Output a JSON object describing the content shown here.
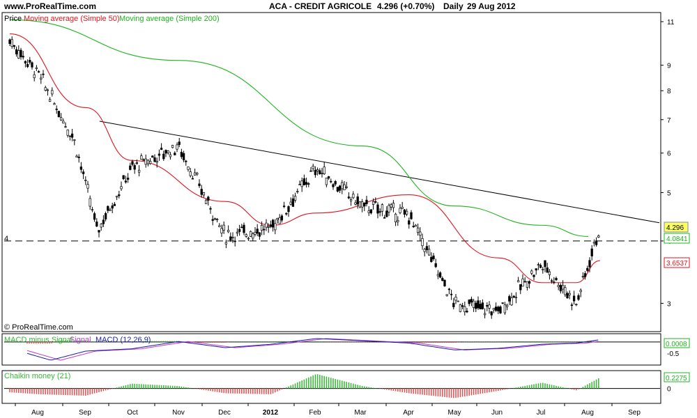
{
  "header": {
    "site": "www.ProRealTime.com",
    "title": "ACA - CREDIT AGRICOLE",
    "price_info": "4.296 (+0.70%)",
    "period": "Daily",
    "date": "29 Aug 2012"
  },
  "copyright": "© ProRealTime.com",
  "colors": {
    "ma50": "#e0161e",
    "ma200": "#1db41d",
    "macd_line": "#1a1aa6",
    "signal_line": "#c03ad0",
    "hist_pos": "#33b833",
    "hist_neg": "#e05050",
    "price_label_bg": "#ffff66"
  },
  "chart_data": [
    {
      "type": "candlestick",
      "title": "ACA - CREDIT AGRICOLE",
      "legend": [
        {
          "name": "Price",
          "color": "#000000"
        },
        {
          "name": "Moving average (Simple 50)",
          "color": "#e0161e"
        },
        {
          "name": "Moving average (Simple 200)",
          "color": "#1db41d"
        }
      ],
      "y_scale": "log",
      "y_ticks": [
        "11",
        "9",
        "8",
        "7",
        "6",
        "5",
        "4",
        "3"
      ],
      "y_range": [
        2.65,
        11.4
      ],
      "x_ticks": [
        "Aug",
        "Sep",
        "Oct",
        "Nov",
        "Dec",
        "2012",
        "Feb",
        "Mar",
        "Apr",
        "May",
        "Jun",
        "Jul",
        "Aug",
        "Sep"
      ],
      "left_label": "4",
      "last_price": 4.296,
      "ma200_last": 4.0841,
      "ma50_last": 3.6537,
      "support_level": 4.0,
      "trendline": [
        {
          "date": "Sep 2011",
          "value": 6.95
        },
        {
          "date": "Sep 2012",
          "value": 4.35
        }
      ],
      "price_path": [
        {
          "date": "Jul 2011",
          "close": 10.1
        },
        {
          "date": "Aug 2011",
          "close": 8.6
        },
        {
          "date": "Sep 2011",
          "close": 6.4
        },
        {
          "date": "Sep 2011",
          "close": 4.2
        },
        {
          "date": "Oct 2011",
          "close": 5.6
        },
        {
          "date": "Nov 2011",
          "close": 6.2
        },
        {
          "date": "Dec 2011",
          "close": 4.1
        },
        {
          "date": "Jan 2012",
          "close": 4.25
        },
        {
          "date": "Feb 2012",
          "close": 5.6
        },
        {
          "date": "Mar 2012",
          "close": 4.7
        },
        {
          "date": "Apr 2012",
          "close": 4.5
        },
        {
          "date": "May 2012",
          "close": 3.0
        },
        {
          "date": "Jun 2012",
          "close": 2.9
        },
        {
          "date": "Jul 2012",
          "close": 3.6
        },
        {
          "date": "Aug 2012",
          "close": 3.0
        },
        {
          "date": "Aug 2012",
          "close": 4.296
        }
      ],
      "ma50_path": [
        {
          "date": "Jul 2011",
          "value": 10.4
        },
        {
          "date": "Sep 2011",
          "value": 7.4
        },
        {
          "date": "Oct 2011",
          "value": 5.8
        },
        {
          "date": "Dec 2011",
          "value": 4.8
        },
        {
          "date": "Jan 2012",
          "value": 4.3
        },
        {
          "date": "Feb 2012",
          "value": 4.55
        },
        {
          "date": "Apr 2012",
          "value": 4.95
        },
        {
          "date": "Jun 2012",
          "value": 3.7
        },
        {
          "date": "Jul 2012",
          "value": 3.3
        },
        {
          "date": "Aug 2012",
          "value": 3.3
        },
        {
          "date": "Aug 2012",
          "value": 3.6537
        }
      ],
      "ma200_path": [
        {
          "date": "Jul 2011",
          "value": 11.1
        },
        {
          "date": "Nov 2011",
          "value": 9.2
        },
        {
          "date": "Mar 2012",
          "value": 6.2
        },
        {
          "date": "May 2012",
          "value": 4.7
        },
        {
          "date": "Jul 2012",
          "value": 4.3
        },
        {
          "date": "Aug 2012",
          "value": 4.0841
        }
      ]
    },
    {
      "type": "line",
      "title": "MACD minus Signal  Signal  MACD (12,26,9)",
      "legend": [
        {
          "name": "MACD minus Signal",
          "color": "#33b833"
        },
        {
          "name": "Signal",
          "color": "#c03ad0"
        },
        {
          "name": "MACD (12,26,9)",
          "color": "#1a1aa6"
        }
      ],
      "y_ticks": [
        "0",
        "-0.5"
      ],
      "last_value": 0.0008,
      "macd_path": [
        {
          "date": "Aug 2011",
          "value": -0.5
        },
        {
          "date": "Aug 2011",
          "value": -0.8
        },
        {
          "date": "Sep 2011",
          "value": -0.4
        },
        {
          "date": "Oct 2011",
          "value": -0.3
        },
        {
          "date": "Nov 2011",
          "value": 0.02
        },
        {
          "date": "Dec 2011",
          "value": -0.25
        },
        {
          "date": "Jan 2012",
          "value": -0.1
        },
        {
          "date": "Feb 2012",
          "value": 0.15
        },
        {
          "date": "Mar 2012",
          "value": 0.05
        },
        {
          "date": "Apr 2012",
          "value": -0.05
        },
        {
          "date": "May 2012",
          "value": -0.35
        },
        {
          "date": "Jun 2012",
          "value": -0.28
        },
        {
          "date": "Jul 2012",
          "value": -0.1
        },
        {
          "date": "Aug 2012",
          "value": -0.05
        },
        {
          "date": "Aug 2012",
          "value": 0.1
        }
      ]
    },
    {
      "type": "bar",
      "title": "Chaikin money (21)",
      "y_ticks": [
        "0"
      ],
      "last_value": 0.2275,
      "values_path": [
        {
          "date": "Jul 2011",
          "value": -0.08
        },
        {
          "date": "Aug 2011",
          "value": -0.12
        },
        {
          "date": "Sep 2011",
          "value": -0.15
        },
        {
          "date": "Oct 2011",
          "value": 0.1
        },
        {
          "date": "Nov 2011",
          "value": 0.05
        },
        {
          "date": "Dec 2011",
          "value": -0.1
        },
        {
          "date": "Jan 2012",
          "value": -0.12
        },
        {
          "date": "Feb 2012",
          "value": 0.3
        },
        {
          "date": "Mar 2012",
          "value": 0.05
        },
        {
          "date": "Apr 2012",
          "value": -0.1
        },
        {
          "date": "May 2012",
          "value": -0.2
        },
        {
          "date": "Jun 2012",
          "value": -0.05
        },
        {
          "date": "Jul 2012",
          "value": 0.12
        },
        {
          "date": "Aug 2012",
          "value": -0.04
        },
        {
          "date": "Aug 2012",
          "value": 0.2275
        }
      ]
    }
  ]
}
